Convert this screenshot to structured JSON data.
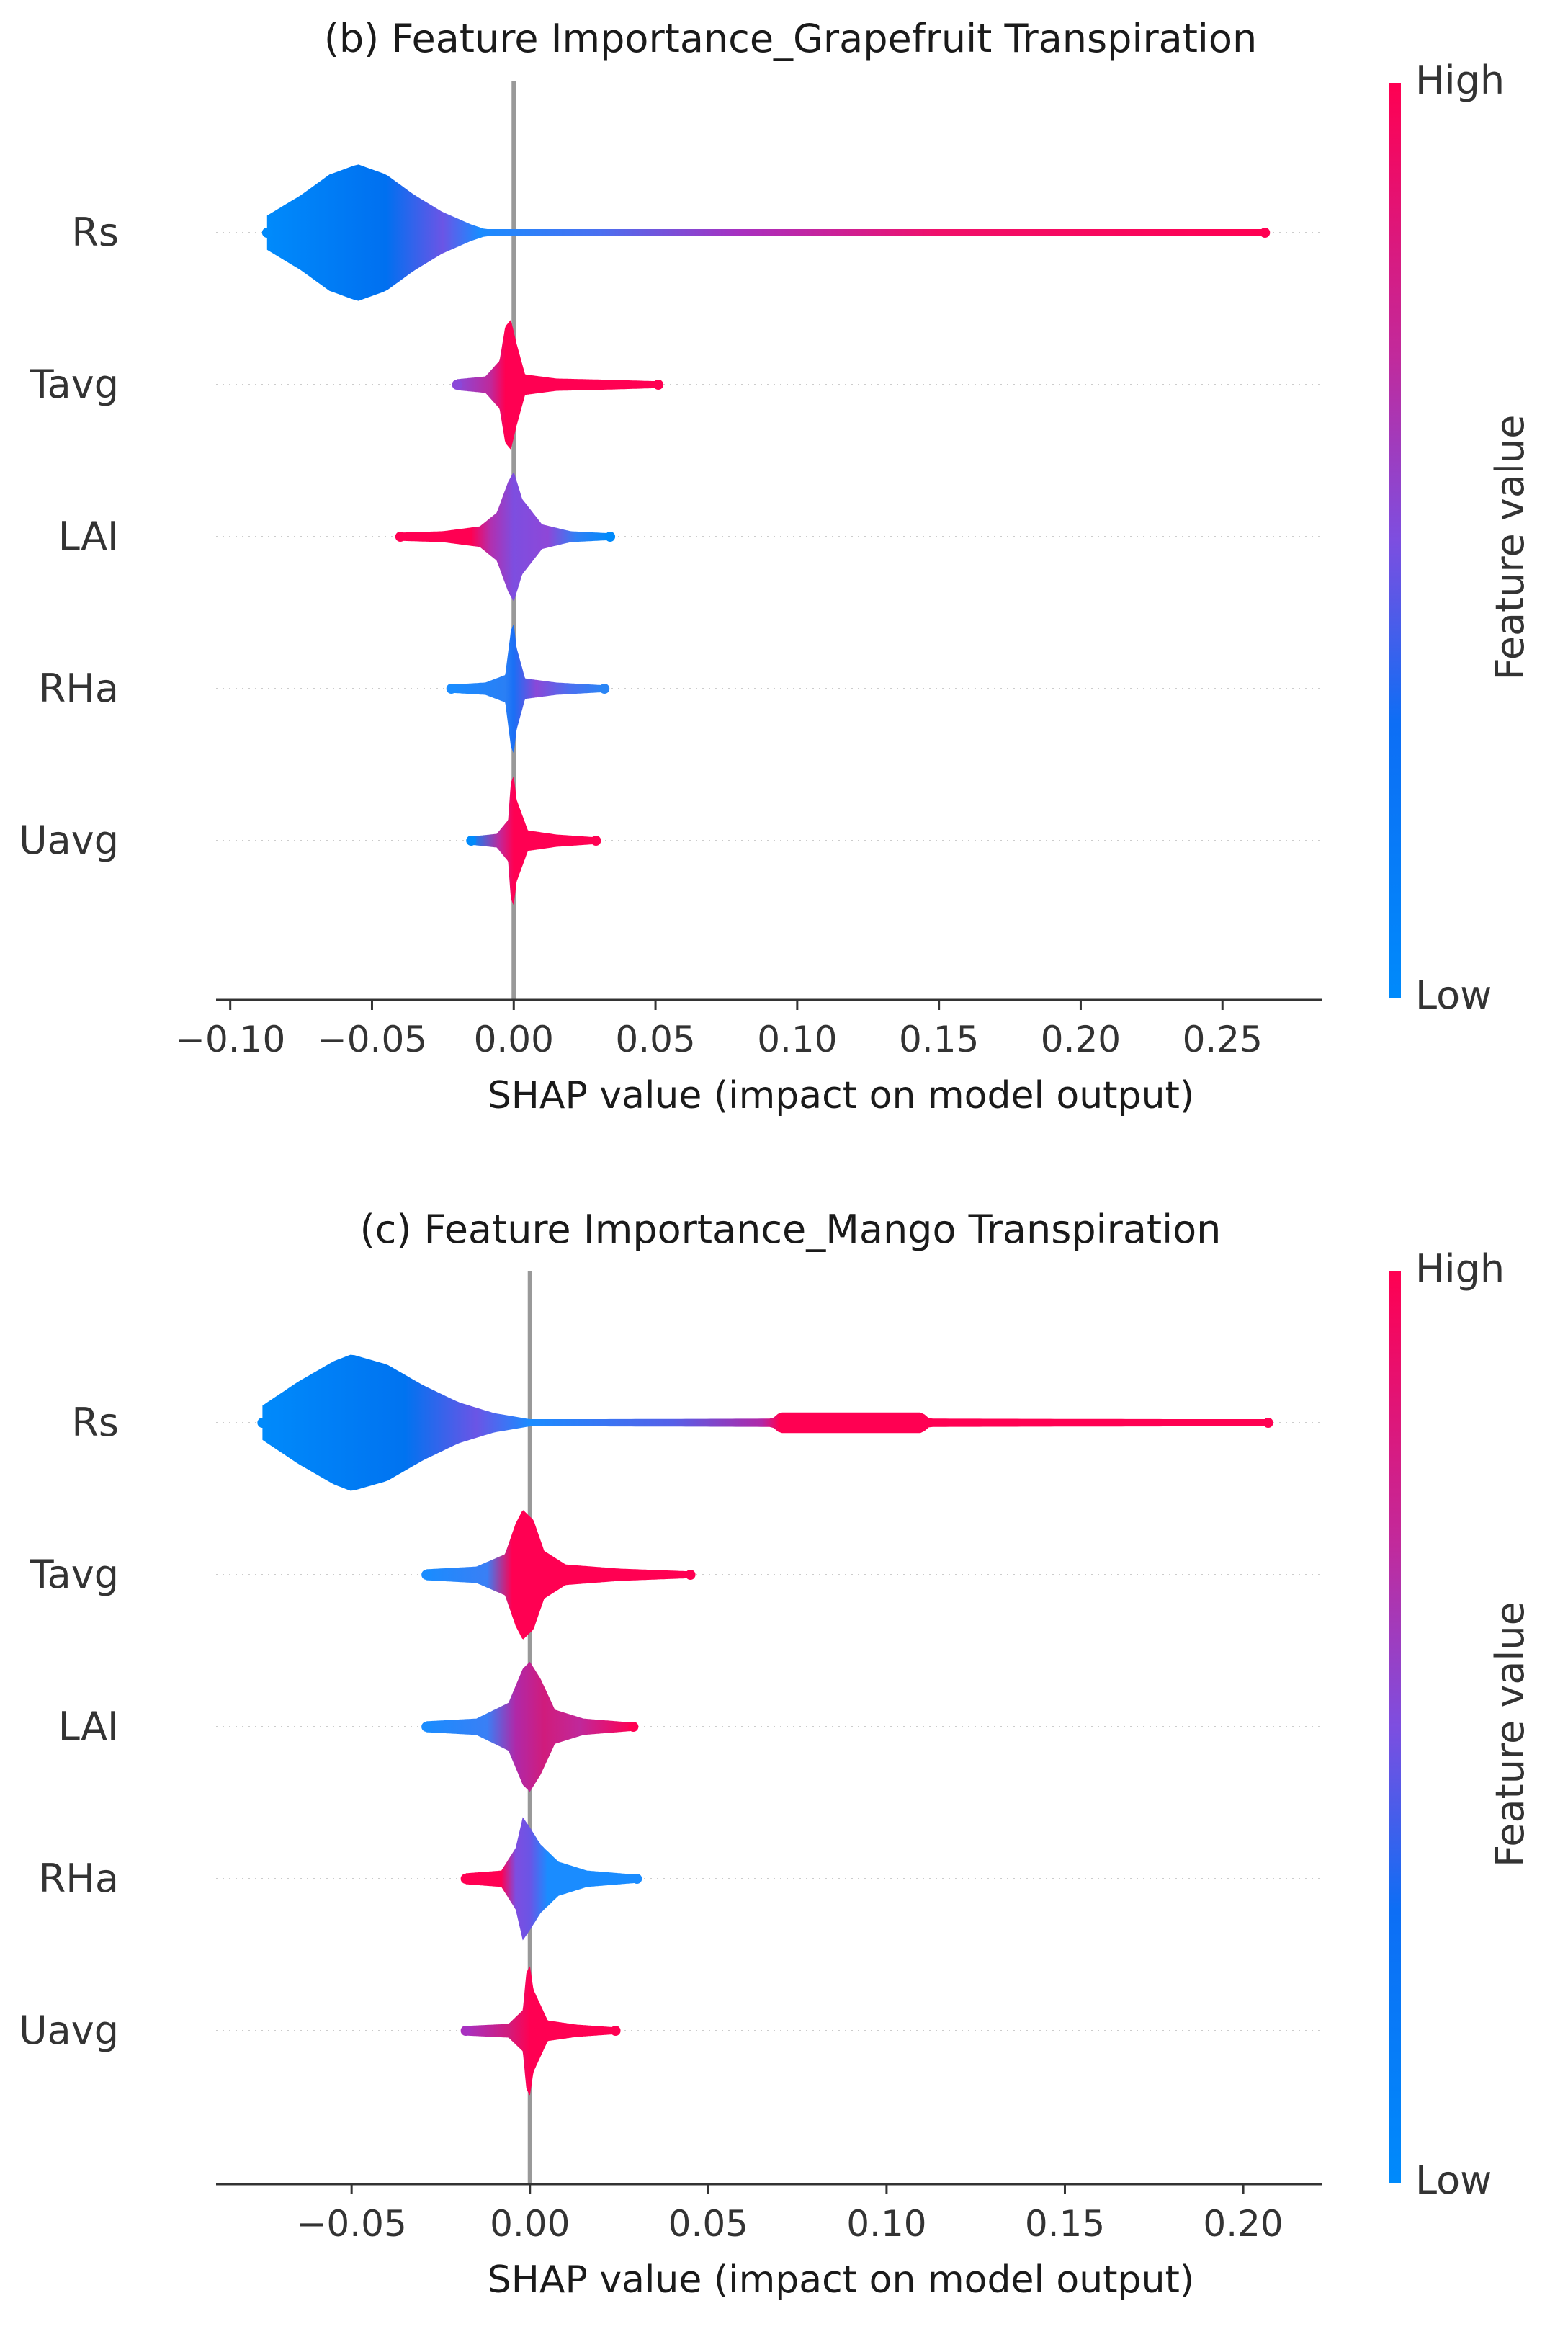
{
  "colors": {
    "low": "#008afb",
    "mid": "#7d4ee0",
    "high": "#ff0052",
    "zero_line": "#999999",
    "axis": "#333333",
    "grid": "#cccccc"
  },
  "colorbar": {
    "high_label": "High",
    "low_label": "Low",
    "axis_label": "Feature value"
  },
  "chart_data": [
    {
      "type": "scatter",
      "subtype": "shap-beeswarm",
      "title": "(b) Feature Importance_Grapefruit Transpiration",
      "xlabel": "SHAP value (impact on model output)",
      "ylabel": "",
      "xlim": [
        -0.105,
        0.285
      ],
      "xticks": [
        -0.1,
        -0.05,
        0.0,
        0.05,
        0.1,
        0.15,
        0.2,
        0.25
      ],
      "xtick_labels": [
        "−0.10",
        "−0.05",
        "0.00",
        "0.05",
        "0.10",
        "0.15",
        "0.20",
        "0.25"
      ],
      "features": [
        {
          "name": "Rs",
          "min": -0.087,
          "max": 0.265,
          "density": [
            [
              -0.087,
              0.25
            ],
            [
              -0.075,
              0.55
            ],
            [
              -0.065,
              0.85
            ],
            [
              -0.055,
              1.0
            ],
            [
              -0.045,
              0.85
            ],
            [
              -0.035,
              0.55
            ],
            [
              -0.025,
              0.3
            ],
            [
              -0.015,
              0.12
            ],
            [
              -0.01,
              0.05
            ],
            [
              0.265,
              0.05
            ]
          ],
          "color_stops": [
            [
              -0.087,
              "#008afb"
            ],
            [
              -0.045,
              "#0070f0"
            ],
            [
              -0.025,
              "#6a55e6"
            ],
            [
              -0.012,
              "#1a8cff"
            ],
            [
              0.03,
              "#4a70f0"
            ],
            [
              0.08,
              "#a830c0"
            ],
            [
              0.15,
              "#f0106a"
            ],
            [
              0.265,
              "#ff0052"
            ]
          ]
        },
        {
          "name": "Tavg",
          "min": -0.02,
          "max": 0.051,
          "density": [
            [
              -0.02,
              0.08
            ],
            [
              -0.01,
              0.12
            ],
            [
              -0.005,
              0.35
            ],
            [
              -0.003,
              0.85
            ],
            [
              -0.001,
              0.95
            ],
            [
              0.001,
              0.6
            ],
            [
              0.004,
              0.15
            ],
            [
              0.015,
              0.09
            ],
            [
              0.035,
              0.07
            ],
            [
              0.051,
              0.05
            ]
          ],
          "color_stops": [
            [
              -0.02,
              "#8a48d8"
            ],
            [
              -0.008,
              "#c0289a"
            ],
            [
              -0.003,
              "#ff0052"
            ],
            [
              0.051,
              "#ff0052"
            ]
          ]
        },
        {
          "name": "LAI",
          "min": -0.04,
          "max": 0.034,
          "density": [
            [
              -0.04,
              0.06
            ],
            [
              -0.025,
              0.08
            ],
            [
              -0.012,
              0.15
            ],
            [
              -0.006,
              0.35
            ],
            [
              -0.002,
              0.8
            ],
            [
              0.0,
              0.95
            ],
            [
              0.003,
              0.55
            ],
            [
              0.01,
              0.18
            ],
            [
              0.02,
              0.08
            ],
            [
              0.034,
              0.05
            ]
          ],
          "color_stops": [
            [
              -0.04,
              "#ff0052"
            ],
            [
              -0.015,
              "#ff0052"
            ],
            [
              -0.008,
              "#b030b0"
            ],
            [
              0.0,
              "#7d4ee0"
            ],
            [
              0.012,
              "#8e47d8"
            ],
            [
              0.022,
              "#3080f5"
            ],
            [
              0.034,
              "#008afb"
            ]
          ]
        },
        {
          "name": "RHa",
          "min": -0.022,
          "max": 0.032,
          "density": [
            [
              -0.022,
              0.06
            ],
            [
              -0.01,
              0.09
            ],
            [
              -0.003,
              0.2
            ],
            [
              -0.001,
              0.85
            ],
            [
              0.0,
              0.95
            ],
            [
              0.001,
              0.6
            ],
            [
              0.004,
              0.15
            ],
            [
              0.015,
              0.09
            ],
            [
              0.032,
              0.05
            ]
          ],
          "color_stops": [
            [
              -0.022,
              "#1a8cff"
            ],
            [
              -0.003,
              "#2a7ff5"
            ],
            [
              0.0,
              "#1a6ff5"
            ],
            [
              0.008,
              "#8a48d8"
            ],
            [
              0.02,
              "#4a70f0"
            ],
            [
              0.032,
              "#2a85f5"
            ]
          ]
        },
        {
          "name": "Uavg",
          "min": -0.015,
          "max": 0.029,
          "density": [
            [
              -0.015,
              0.06
            ],
            [
              -0.006,
              0.1
            ],
            [
              -0.002,
              0.3
            ],
            [
              -0.001,
              0.85
            ],
            [
              0.0,
              0.95
            ],
            [
              0.001,
              0.6
            ],
            [
              0.005,
              0.15
            ],
            [
              0.015,
              0.09
            ],
            [
              0.029,
              0.05
            ]
          ],
          "color_stops": [
            [
              -0.015,
              "#008afb"
            ],
            [
              -0.005,
              "#c0289a"
            ],
            [
              0.0,
              "#ff0052"
            ],
            [
              0.029,
              "#ff0052"
            ]
          ]
        }
      ]
    },
    {
      "type": "scatter",
      "subtype": "shap-beeswarm",
      "title": "(c) Feature Importance_Mango Transpiration",
      "xlabel": "SHAP value (impact on model output)",
      "ylabel": "",
      "xlim": [
        -0.088,
        0.222
      ],
      "xticks": [
        -0.05,
        0.0,
        0.05,
        0.1,
        0.15,
        0.2
      ],
      "xtick_labels": [
        "−0.05",
        "0.00",
        "0.05",
        "0.10",
        "0.15",
        "0.20"
      ],
      "features": [
        {
          "name": "Rs",
          "min": -0.075,
          "max": 0.207,
          "density": [
            [
              -0.075,
              0.25
            ],
            [
              -0.065,
              0.6
            ],
            [
              -0.055,
              0.9
            ],
            [
              -0.05,
              1.0
            ],
            [
              -0.04,
              0.85
            ],
            [
              -0.03,
              0.55
            ],
            [
              -0.02,
              0.3
            ],
            [
              -0.01,
              0.14
            ],
            [
              -0.002,
              0.07
            ],
            [
              0.0,
              0.05
            ],
            [
              0.068,
              0.06
            ],
            [
              0.07,
              0.15
            ],
            [
              0.11,
              0.15
            ],
            [
              0.112,
              0.06
            ],
            [
              0.207,
              0.05
            ]
          ],
          "color_stops": [
            [
              -0.075,
              "#008afb"
            ],
            [
              -0.035,
              "#0073f0"
            ],
            [
              -0.015,
              "#6a55e6"
            ],
            [
              0.0,
              "#1a8cff"
            ],
            [
              0.04,
              "#5560e8"
            ],
            [
              0.065,
              "#b028a8"
            ],
            [
              0.07,
              "#ff0052"
            ],
            [
              0.207,
              "#ff0052"
            ]
          ]
        },
        {
          "name": "Tavg",
          "min": -0.029,
          "max": 0.045,
          "density": [
            [
              -0.029,
              0.08
            ],
            [
              -0.015,
              0.12
            ],
            [
              -0.007,
              0.3
            ],
            [
              -0.004,
              0.75
            ],
            [
              -0.002,
              0.95
            ],
            [
              0.001,
              0.8
            ],
            [
              0.004,
              0.35
            ],
            [
              0.01,
              0.15
            ],
            [
              0.025,
              0.09
            ],
            [
              0.045,
              0.05
            ]
          ],
          "color_stops": [
            [
              -0.029,
              "#1a8cff"
            ],
            [
              -0.012,
              "#3a7ff5"
            ],
            [
              -0.005,
              "#ff0052"
            ],
            [
              0.045,
              "#ff0052"
            ]
          ]
        },
        {
          "name": "LAI",
          "min": -0.029,
          "max": 0.029,
          "density": [
            [
              -0.029,
              0.08
            ],
            [
              -0.015,
              0.12
            ],
            [
              -0.006,
              0.35
            ],
            [
              -0.002,
              0.85
            ],
            [
              0.0,
              0.95
            ],
            [
              0.003,
              0.7
            ],
            [
              0.007,
              0.25
            ],
            [
              0.015,
              0.12
            ],
            [
              0.029,
              0.06
            ]
          ],
          "color_stops": [
            [
              -0.029,
              "#1a8cff"
            ],
            [
              -0.012,
              "#3a7ff5"
            ],
            [
              -0.004,
              "#b028a8"
            ],
            [
              0.004,
              "#d01c7c"
            ],
            [
              0.014,
              "#c0289a"
            ],
            [
              0.029,
              "#ff0052"
            ]
          ]
        },
        {
          "name": "RHa",
          "min": -0.018,
          "max": 0.03,
          "density": [
            [
              -0.018,
              0.08
            ],
            [
              -0.008,
              0.12
            ],
            [
              -0.004,
              0.45
            ],
            [
              -0.002,
              0.9
            ],
            [
              0.0,
              0.75
            ],
            [
              0.003,
              0.5
            ],
            [
              0.008,
              0.25
            ],
            [
              0.016,
              0.12
            ],
            [
              0.03,
              0.06
            ]
          ],
          "color_stops": [
            [
              -0.018,
              "#ff0052"
            ],
            [
              -0.008,
              "#ff0052"
            ],
            [
              -0.004,
              "#7d4ee0"
            ],
            [
              0.0,
              "#6a55e6"
            ],
            [
              0.005,
              "#1a8cff"
            ],
            [
              0.03,
              "#1a8cff"
            ]
          ]
        },
        {
          "name": "Uavg",
          "min": -0.018,
          "max": 0.024,
          "density": [
            [
              -0.018,
              0.07
            ],
            [
              -0.006,
              0.1
            ],
            [
              -0.002,
              0.3
            ],
            [
              -0.001,
              0.85
            ],
            [
              0.0,
              0.95
            ],
            [
              0.001,
              0.6
            ],
            [
              0.005,
              0.15
            ],
            [
              0.013,
              0.09
            ],
            [
              0.024,
              0.05
            ]
          ],
          "color_stops": [
            [
              -0.018,
              "#a830c0"
            ],
            [
              -0.006,
              "#d01c7c"
            ],
            [
              0.0,
              "#ff0052"
            ],
            [
              0.024,
              "#ff0052"
            ]
          ]
        }
      ]
    }
  ]
}
